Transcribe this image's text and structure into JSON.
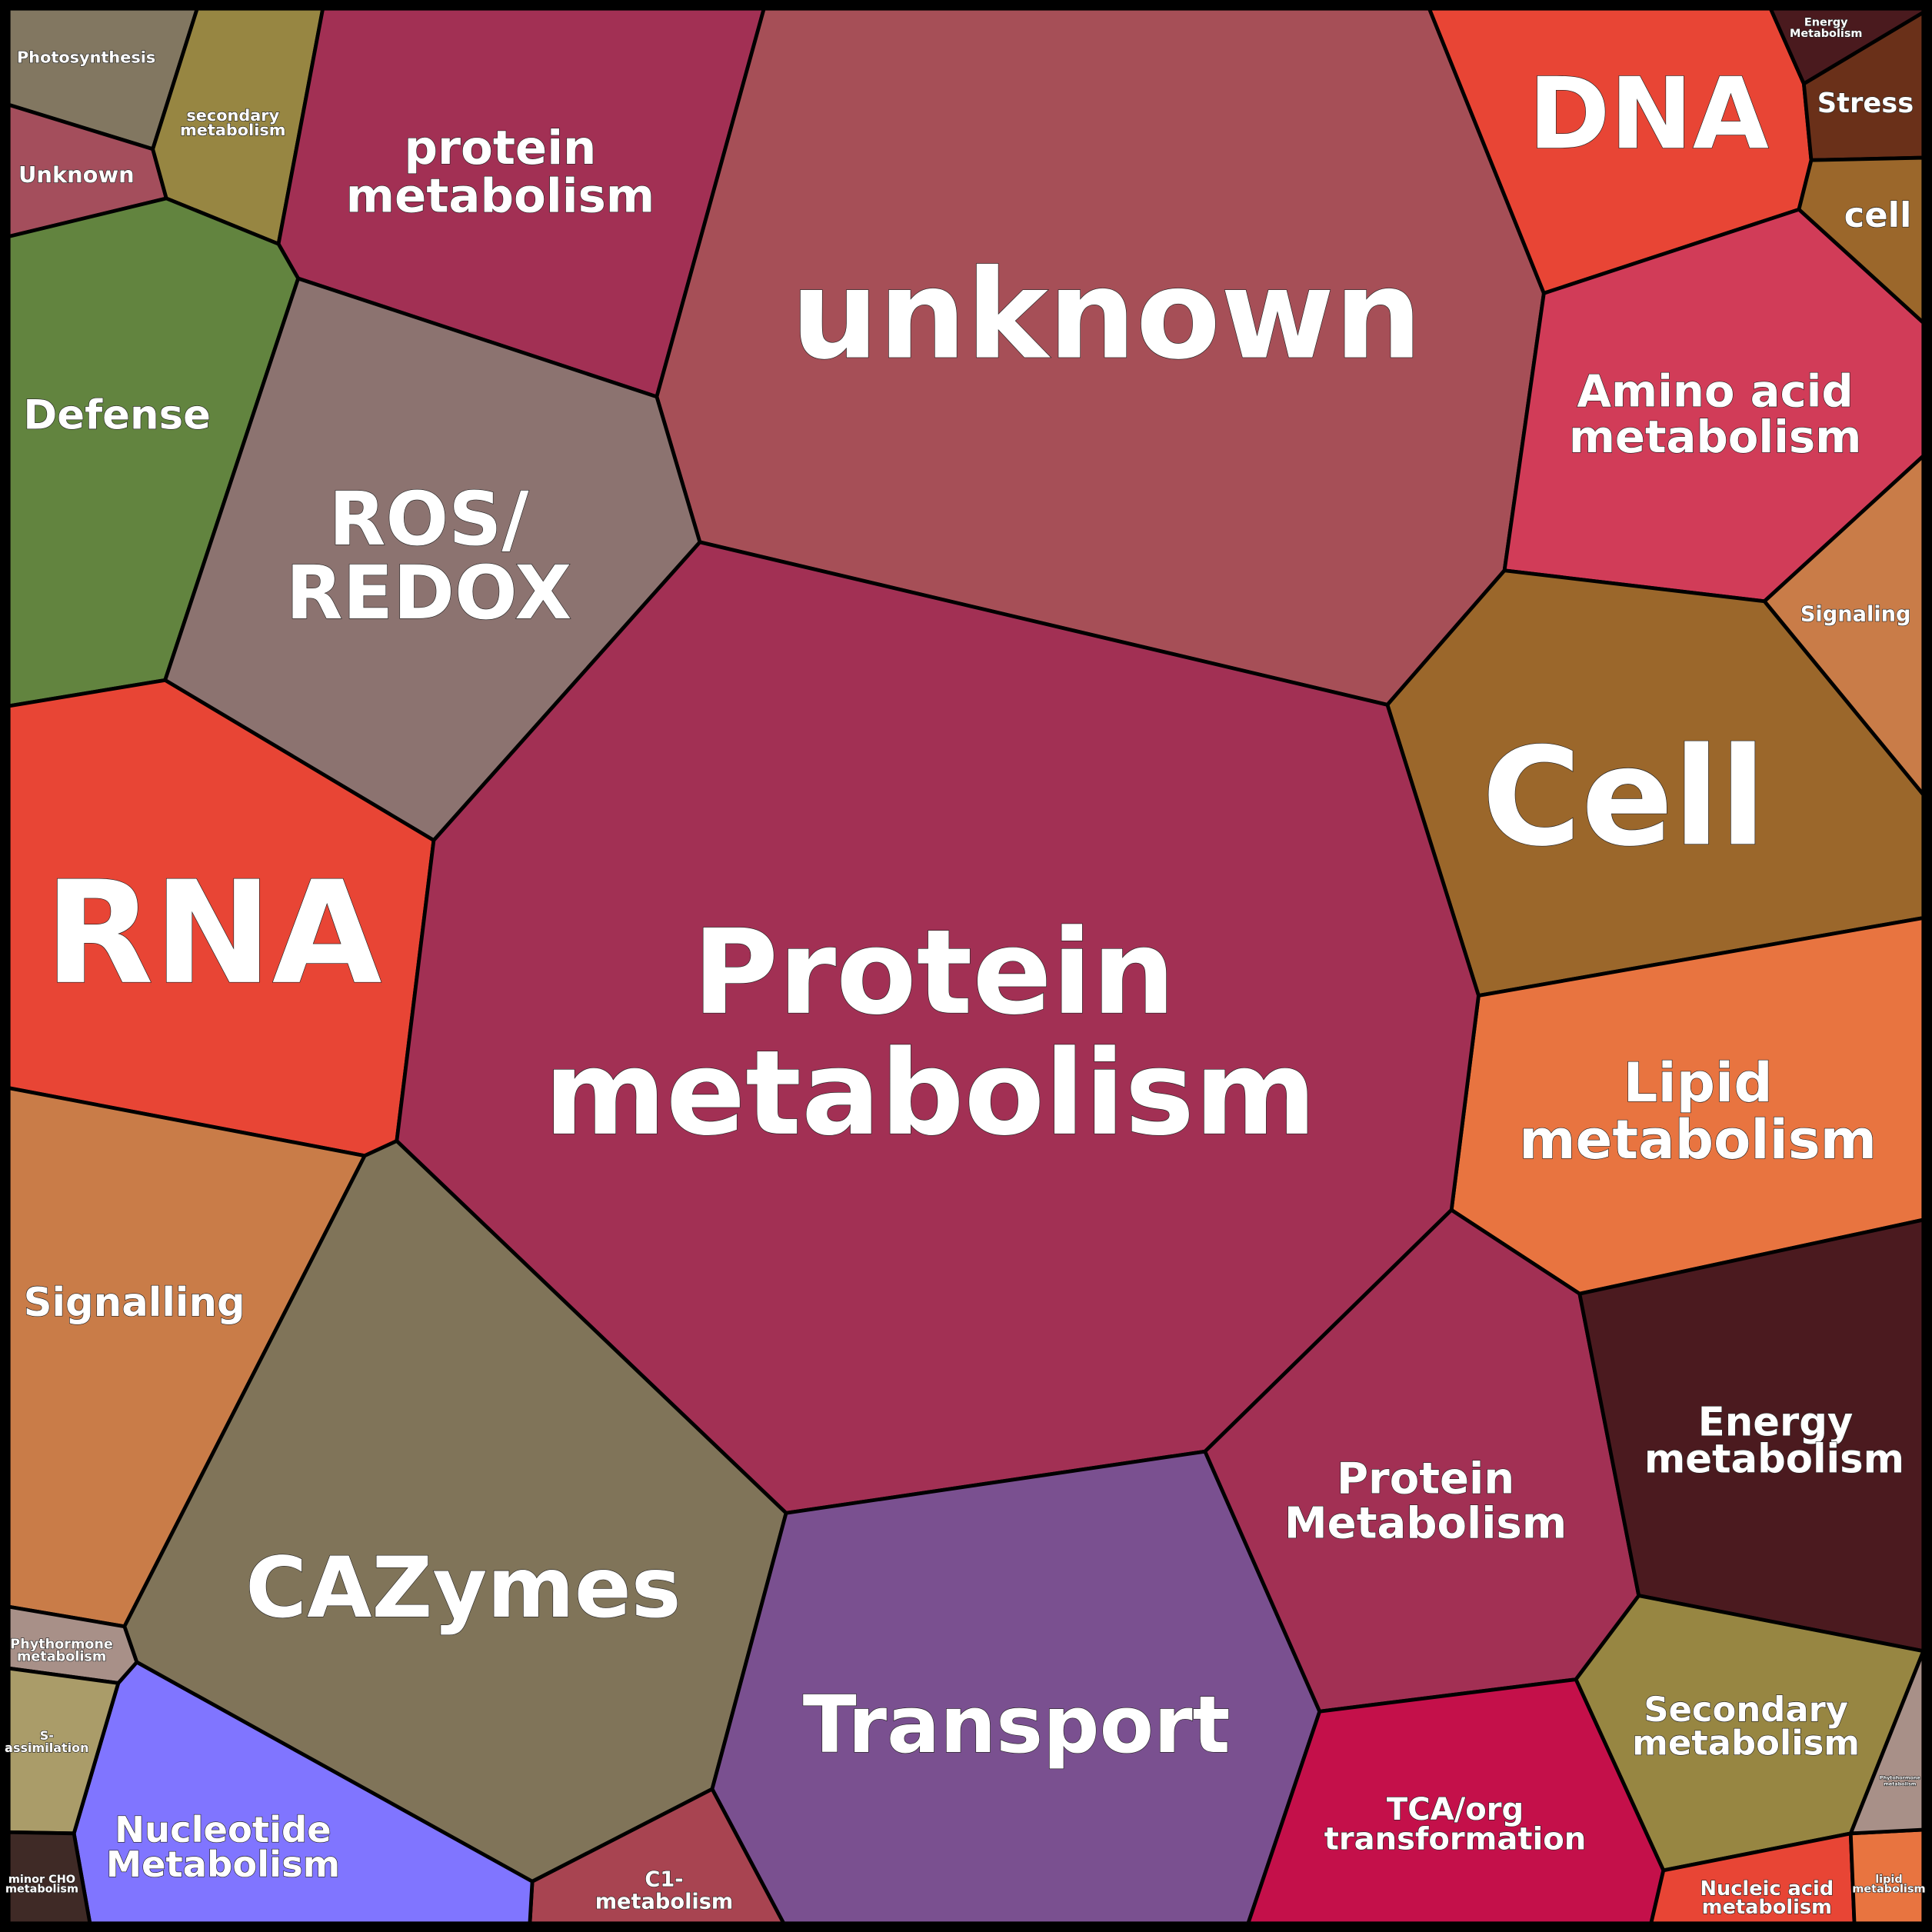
{
  "cells": [
    {
      "label": [
        "Photosynthesis"
      ]
    },
    {
      "label": [
        "Unknown"
      ]
    },
    {
      "label": [
        "secondary",
        "metabolism"
      ]
    },
    {
      "label": [
        "protein",
        "metabolism"
      ]
    },
    {
      "label": [
        "unknown"
      ]
    },
    {
      "label": [
        "DNA"
      ]
    },
    {
      "label": [
        "Energy",
        "Metabolism"
      ]
    },
    {
      "label": [
        "Stress"
      ]
    },
    {
      "label": [
        "cell"
      ]
    },
    {
      "label": [
        "Amino acid",
        "metabolism"
      ]
    },
    {
      "label": [
        "Signaling"
      ]
    },
    {
      "label": [
        "Cell"
      ]
    },
    {
      "label": [
        "Lipid",
        "metabolism"
      ]
    },
    {
      "label": [
        "Defense"
      ]
    },
    {
      "label": [
        "ROS/",
        "REDOX"
      ]
    },
    {
      "label": [
        "RNA"
      ]
    },
    {
      "label": [
        "Protein",
        "metabolism"
      ]
    },
    {
      "label": [
        "Signalling"
      ]
    },
    {
      "label": [
        "CAZymes"
      ]
    },
    {
      "label": [
        "Transport"
      ]
    },
    {
      "label": [
        "Protein",
        "Metabolism"
      ]
    },
    {
      "label": [
        "Energy",
        "metabolism"
      ]
    },
    {
      "label": [
        "Secondary",
        "metabolism"
      ]
    },
    {
      "label": [
        "TCA/org",
        "transformation"
      ]
    },
    {
      "label": [
        "C1-",
        "metabolism"
      ]
    },
    {
      "label": [
        "Nucleotide",
        "Metabolism"
      ]
    },
    {
      "label": [
        "Phythormone",
        "metabolism"
      ]
    },
    {
      "label": [
        "S-",
        "assimilation"
      ]
    },
    {
      "label": [
        "minor CHO",
        "metabolism"
      ]
    },
    {
      "label": [
        "Nucleic acid",
        "metabolism"
      ]
    },
    {
      "label": [
        "lipid",
        "metabolism"
      ]
    },
    {
      "label": [
        "Phytohormone",
        "metabolism"
      ]
    }
  ]
}
